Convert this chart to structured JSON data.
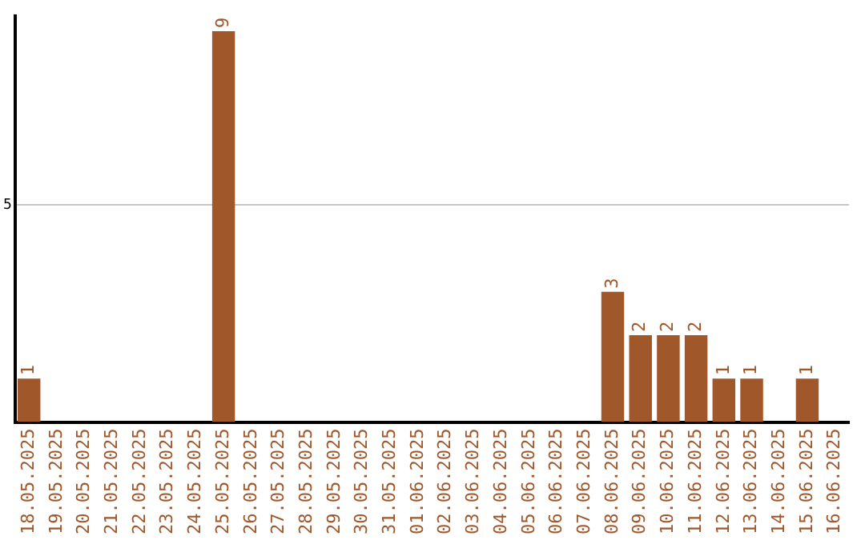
{
  "chart_data": {
    "type": "bar",
    "categories": [
      "18.05.2025",
      "19.05.2025",
      "20.05.2025",
      "21.05.2025",
      "22.05.2025",
      "23.05.2025",
      "24.05.2025",
      "25.05.2025",
      "26.05.2025",
      "27.05.2025",
      "28.05.2025",
      "29.05.2025",
      "30.05.2025",
      "31.05.2025",
      "01.06.2025",
      "02.06.2025",
      "03.06.2025",
      "04.06.2025",
      "05.06.2025",
      "06.06.2025",
      "07.06.2025",
      "08.06.2025",
      "09.06.2025",
      "10.06.2025",
      "11.06.2025",
      "12.06.2025",
      "13.06.2025",
      "14.06.2025",
      "15.06.2025",
      "16.06.2025"
    ],
    "values": [
      1,
      0,
      0,
      0,
      0,
      0,
      0,
      9,
      0,
      0,
      0,
      0,
      0,
      0,
      0,
      0,
      0,
      0,
      0,
      0,
      0,
      3,
      2,
      2,
      2,
      1,
      1,
      0,
      1,
      0
    ],
    "value_labels": [
      "1",
      null,
      null,
      null,
      null,
      null,
      null,
      "9",
      null,
      null,
      null,
      null,
      null,
      null,
      null,
      null,
      null,
      null,
      null,
      null,
      null,
      "3",
      "2",
      "2",
      "2",
      "1",
      "1",
      null,
      "1",
      null
    ],
    "color": "#a0572a",
    "ylim": [
      0,
      9.35
    ],
    "yticks": [
      5
    ],
    "grid": "y",
    "legend": false
  }
}
